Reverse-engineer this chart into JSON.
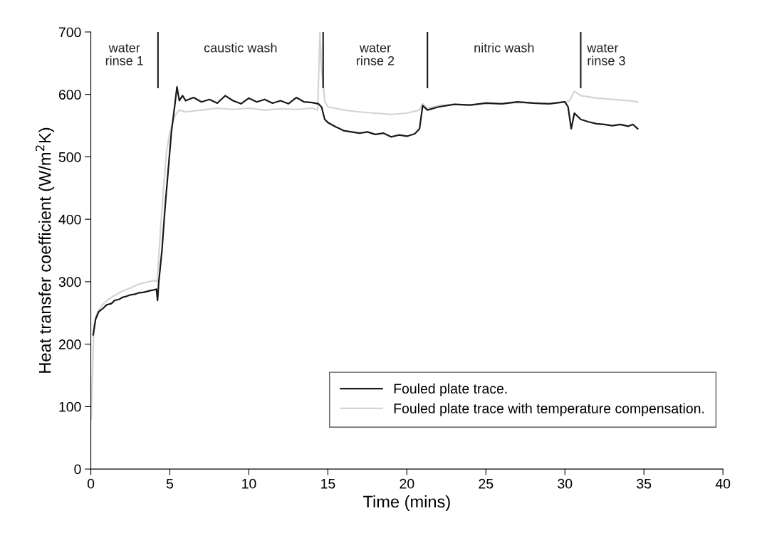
{
  "chart_data": {
    "type": "line",
    "xlabel": "Time (mins)",
    "ylabel": "Heat transfer coefficient (W/m$^{2}$K)",
    "xlim": [
      0,
      40
    ],
    "xticks": [
      0,
      5,
      10,
      15,
      20,
      25,
      30,
      35,
      40
    ],
    "ylim": [
      0,
      700
    ],
    "yticks": [
      0,
      100,
      200,
      300,
      400,
      500,
      600,
      700
    ],
    "grid": false,
    "legend": "bottom right",
    "line_style": "solid",
    "marker": "none",
    "series": [
      {
        "name": "Fouled plate trace.",
        "color": "#1a1a1a",
        "x": [
          0.15,
          0.3,
          0.5,
          0.8,
          1,
          1.3,
          1.5,
          1.8,
          2,
          2.3,
          2.5,
          2.8,
          3,
          3.3,
          3.5,
          3.8,
          4,
          4.15,
          4.22,
          4.3,
          4.5,
          4.7,
          4.9,
          5.1,
          5.3,
          5.45,
          5.6,
          5.8,
          6,
          6.5,
          7,
          7.5,
          8,
          8.5,
          9,
          9.5,
          10,
          10.5,
          11,
          11.5,
          12,
          12.5,
          13,
          13.5,
          14,
          14.4,
          14.6,
          14.8,
          15,
          15.5,
          16,
          16.5,
          17,
          17.5,
          18,
          18.5,
          19,
          19.5,
          20,
          20.5,
          20.8,
          21,
          21.3,
          22,
          23,
          24,
          25,
          26,
          27,
          28,
          29,
          30,
          30.2,
          30.4,
          30.6,
          31,
          31.5,
          32,
          32.5,
          33,
          33.5,
          34,
          34.3,
          34.6
        ],
        "values": [
          215,
          240,
          252,
          258,
          263,
          265,
          270,
          272,
          275,
          277,
          279,
          280,
          282,
          283,
          284,
          286,
          287,
          288,
          270,
          300,
          350,
          420,
          480,
          540,
          580,
          612,
          590,
          598,
          590,
          595,
          588,
          592,
          586,
          598,
          590,
          585,
          594,
          588,
          592,
          586,
          590,
          585,
          595,
          588,
          587,
          585,
          580,
          560,
          555,
          548,
          542,
          540,
          538,
          540,
          536,
          538,
          532,
          535,
          533,
          537,
          545,
          582,
          575,
          580,
          584,
          583,
          586,
          585,
          588,
          586,
          585,
          588,
          580,
          545,
          570,
          560,
          556,
          553,
          552,
          550,
          552,
          549,
          552,
          545
        ]
      },
      {
        "name": "Fouled plate trace with temperature compensation.",
        "color": "#d4d4d4",
        "x": [
          0.02,
          0.05,
          0.1,
          0.2,
          0.4,
          0.7,
          1,
          1.5,
          2,
          2.5,
          3,
          3.5,
          4,
          4.2,
          4.4,
          4.6,
          4.8,
          5,
          5.3,
          5.6,
          6,
          7,
          8,
          9,
          10,
          11,
          12,
          13,
          14,
          14.35,
          14.5,
          14.6,
          14.8,
          15,
          16,
          17,
          18,
          19,
          20,
          20.8,
          21,
          21.3,
          22,
          23,
          24,
          25,
          26,
          27,
          28,
          29,
          30,
          30.3,
          30.6,
          31,
          32,
          33,
          34,
          34.6
        ],
        "values": [
          80,
          110,
          150,
          230,
          250,
          262,
          270,
          278,
          285,
          290,
          296,
          299,
          302,
          300,
          380,
          450,
          510,
          540,
          565,
          575,
          572,
          575,
          578,
          576,
          578,
          575,
          577,
          576,
          578,
          575,
          700,
          640,
          590,
          580,
          575,
          572,
          570,
          568,
          570,
          575,
          585,
          578,
          582,
          584,
          583,
          586,
          585,
          587,
          586,
          585,
          588,
          590,
          605,
          598,
          594,
          592,
          590,
          588
        ]
      }
    ],
    "ref_lines": [
      {
        "axis": "x",
        "value": 4.25,
        "color": "#1a1a1a"
      },
      {
        "axis": "x",
        "value": 14.7,
        "color": "#1a1a1a"
      },
      {
        "axis": "x",
        "value": 21.3,
        "color": "#1a1a1a"
      },
      {
        "axis": "x",
        "value": 31.0,
        "color": "#1a1a1a"
      }
    ],
    "annotations": [
      "water\nrinse 1",
      "caustic wash",
      "water\nrinse 2",
      "nitric wash",
      "water\nrinse 3"
    ]
  }
}
